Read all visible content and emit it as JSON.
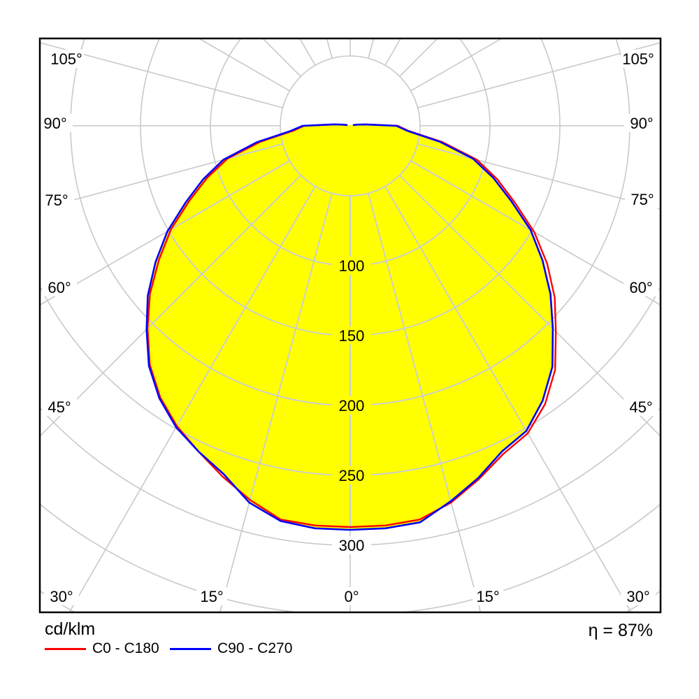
{
  "chart_data": {
    "type": "polar",
    "subtype": "luminous-intensity-distribution",
    "units_label": "cd/klm",
    "efficiency_label": "η = 87%",
    "fill_color": "#ffff00",
    "grid_color": "#c9c9c9",
    "grid_color_inside_fill": "#c6cbe2",
    "border_color": "#000000",
    "text_color": "#000000",
    "angle_grid_step_deg": 15,
    "radial_tick_step_cd_klm": 50,
    "radial_max_cd_klm": 400,
    "radial_tick_labels": [
      "100",
      "150",
      "200",
      "250",
      "300"
    ],
    "radial_tick_label_values": [
      100,
      150,
      200,
      250,
      300
    ],
    "angle_labels_left": [
      "105°",
      "90°",
      "75°",
      "60°",
      "45°",
      "30°"
    ],
    "angle_labels_bottom": [
      "15°",
      "0°",
      "15°"
    ],
    "angle_labels_right": [
      "30°",
      "45°",
      "60°",
      "75°",
      "90°",
      "105°"
    ],
    "series": [
      {
        "name": "C0 - C180",
        "color": "#ff0000",
        "angles_deg": [
          -105,
          -100,
          -95,
          -90,
          -85,
          -80,
          -75,
          -70,
          -65,
          -60,
          -55,
          -50,
          -45,
          -40,
          -35,
          -30,
          -25,
          -20,
          -15,
          -10,
          -5,
          0,
          5,
          10,
          15,
          20,
          25,
          30,
          35,
          40,
          45,
          50,
          55,
          60,
          65,
          70,
          75,
          80,
          85,
          90,
          95,
          100,
          105
        ],
        "values_cd_klm": [
          2,
          4,
          11,
          33,
          41,
          65,
          91,
          109,
          127,
          148,
          167,
          187,
          205,
          223,
          237,
          248,
          257,
          267,
          277,
          286,
          287,
          287,
          287,
          286,
          279,
          269,
          259,
          254,
          243,
          228,
          208,
          191,
          172,
          152,
          130,
          112,
          94,
          67,
          42,
          34,
          12,
          5,
          2
        ]
      },
      {
        "name": "C90 - C270",
        "color": "#0000ff",
        "angles_deg": [
          -105,
          -100,
          -95,
          -90,
          -85,
          -80,
          -75,
          -70,
          -65,
          -60,
          -55,
          -50,
          -45,
          -40,
          -35,
          -30,
          -25,
          -20,
          -15,
          -10,
          -5,
          0,
          5,
          10,
          15,
          20,
          25,
          30,
          35,
          40,
          45,
          50,
          55,
          60,
          65,
          70,
          75,
          80,
          85,
          90,
          95,
          100,
          105
        ],
        "values_cd_klm": [
          2,
          5,
          12,
          34,
          43,
          68,
          94,
          112,
          130,
          151,
          170,
          189,
          206,
          224,
          238,
          249,
          257,
          265,
          279,
          287,
          289,
          289,
          289,
          288,
          278,
          268,
          257,
          252,
          240,
          225,
          205,
          187,
          168,
          149,
          127,
          109,
          91,
          65,
          41,
          33,
          11,
          5,
          2
        ]
      }
    ]
  }
}
